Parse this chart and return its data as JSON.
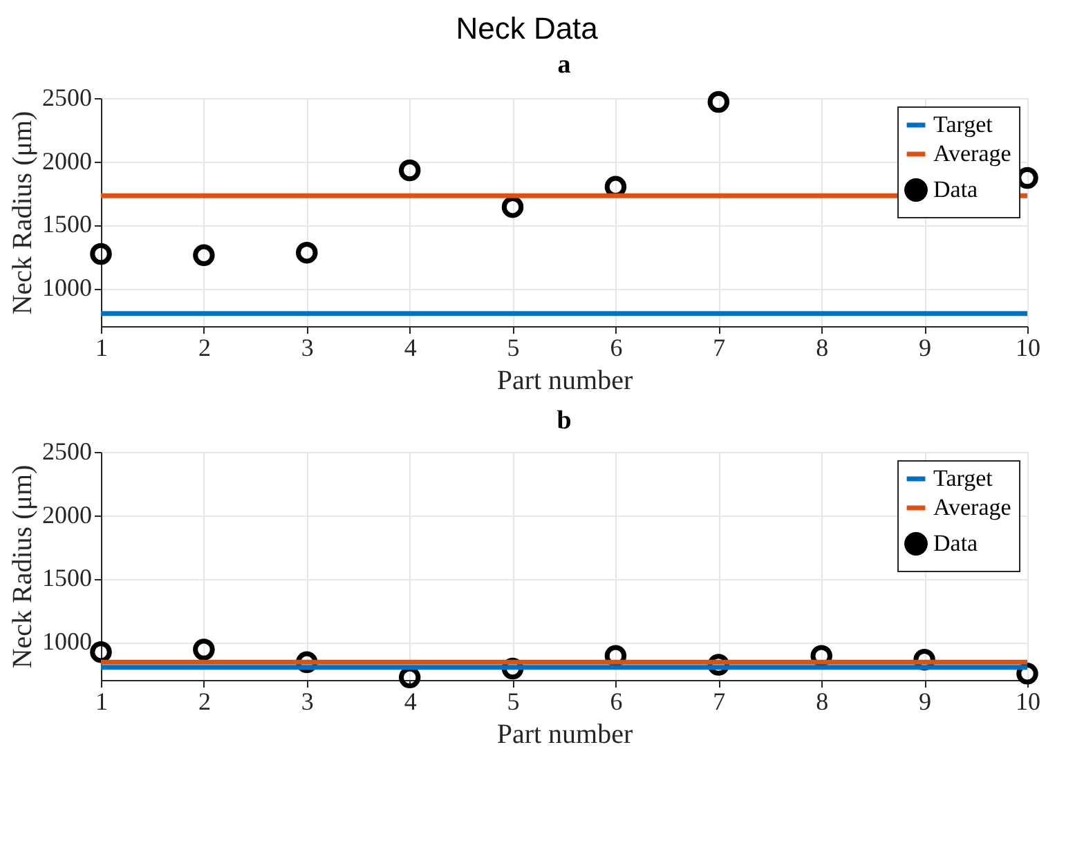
{
  "chart_data": [
    {
      "type": "scatter",
      "title": "Neck Data",
      "subtitle": "a",
      "xlabel": "Part number",
      "ylabel": "Neck Radius (μm)",
      "x": [
        1,
        2,
        3,
        4,
        5,
        6,
        7,
        8,
        9,
        10
      ],
      "xlim": [
        1,
        10
      ],
      "xticks": [
        1,
        2,
        3,
        4,
        5,
        6,
        7,
        8,
        9,
        10
      ],
      "ylim": [
        700,
        2500
      ],
      "yticks": [
        1000,
        1500,
        2000,
        2500
      ],
      "grid": true,
      "legend": "top right",
      "ref_lines": [
        {
          "axis": "y",
          "value": 800,
          "label": "Target",
          "color": "#0072bd",
          "line_style": "solid"
        },
        {
          "axis": "y",
          "value": 1730,
          "label": "Average",
          "color": "#d95319",
          "line_style": "solid"
        }
      ],
      "series": [
        {
          "name": "Data",
          "type": "scatter",
          "marker": "circle",
          "color": "#000000",
          "values": [
            1270,
            1260,
            1280,
            1930,
            1640,
            1800,
            2470,
            null,
            null,
            1870
          ]
        }
      ]
    },
    {
      "type": "scatter",
      "title": "b",
      "xlabel": "Part number",
      "ylabel": "Neck Radius (μm)",
      "x": [
        1,
        2,
        3,
        4,
        5,
        6,
        7,
        8,
        9,
        10
      ],
      "xlim": [
        1,
        10
      ],
      "xticks": [
        1,
        2,
        3,
        4,
        5,
        6,
        7,
        8,
        9,
        10
      ],
      "ylim": [
        700,
        2500
      ],
      "yticks": [
        1000,
        1500,
        2000,
        2500
      ],
      "grid": true,
      "legend": "top right",
      "ref_lines": [
        {
          "axis": "y",
          "value": 800,
          "label": "Target",
          "color": "#0072bd",
          "line_style": "solid"
        },
        {
          "axis": "y",
          "value": 840,
          "label": "Average",
          "color": "#d95319",
          "line_style": "solid"
        }
      ],
      "series": [
        {
          "name": "Data",
          "type": "scatter",
          "marker": "circle",
          "color": "#000000",
          "values": [
            920,
            940,
            840,
            720,
            790,
            890,
            820,
            890,
            860,
            750
          ]
        }
      ]
    }
  ]
}
